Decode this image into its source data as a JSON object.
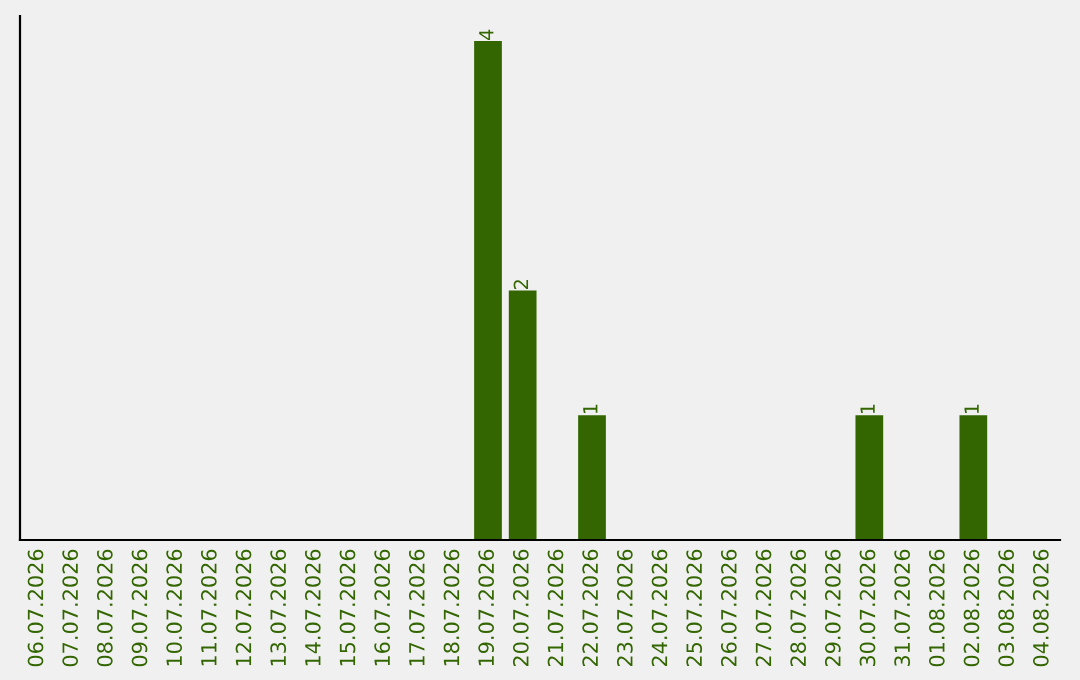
{
  "chart_data": {
    "type": "bar",
    "categories": [
      "06.07.2026",
      "07.07.2026",
      "08.07.2026",
      "09.07.2026",
      "10.07.2026",
      "11.07.2026",
      "12.07.2026",
      "13.07.2026",
      "14.07.2026",
      "15.07.2026",
      "16.07.2026",
      "17.07.2026",
      "18.07.2026",
      "19.07.2026",
      "20.07.2026",
      "21.07.2026",
      "22.07.2026",
      "23.07.2026",
      "24.07.2026",
      "25.07.2026",
      "26.07.2026",
      "27.07.2026",
      "28.07.2026",
      "29.07.2026",
      "30.07.2026",
      "31.07.2026",
      "01.08.2026",
      "02.08.2026",
      "03.08.2026",
      "04.08.2026"
    ],
    "values": [
      null,
      null,
      null,
      null,
      null,
      null,
      null,
      null,
      null,
      null,
      null,
      null,
      null,
      4,
      2,
      null,
      1,
      null,
      null,
      null,
      null,
      null,
      null,
      null,
      1,
      null,
      null,
      1,
      null,
      null
    ],
    "data_labels": true,
    "color": "#336600"
  }
}
